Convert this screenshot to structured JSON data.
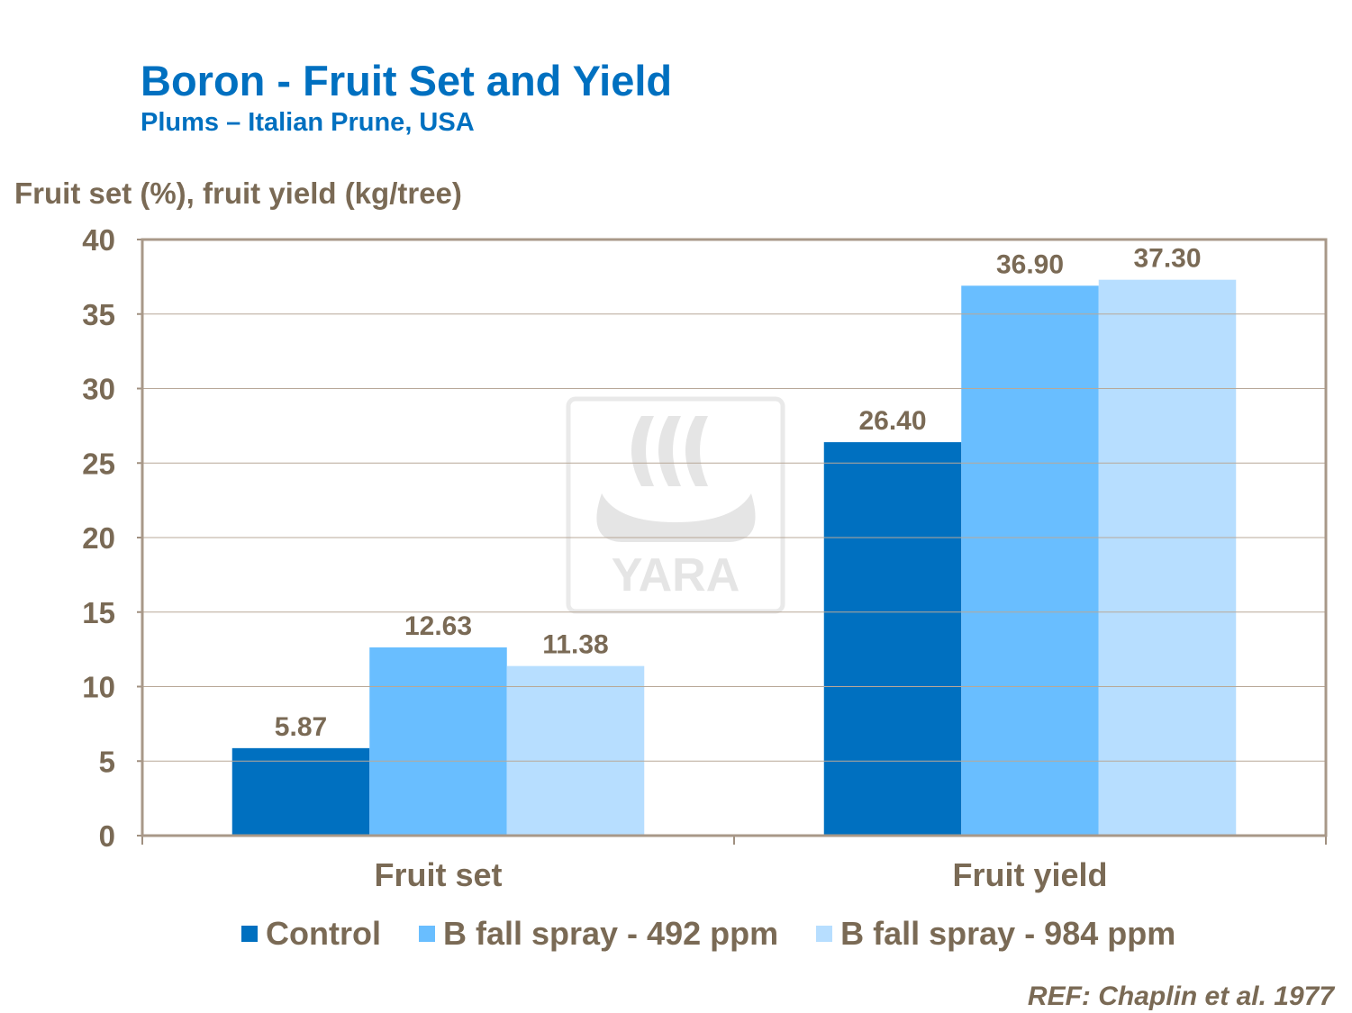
{
  "title": "Boron - Fruit Set and Yield",
  "subtitle": "Plums – Italian Prune, USA",
  "reference": "REF: Chaplin et al. 1977",
  "logo_text": "YARA",
  "chart_data": {
    "type": "bar",
    "title": "Boron - Fruit Set and Yield",
    "subtitle": "Plums – Italian Prune, USA",
    "ylabel": "Fruit set (%), fruit yield (kg/tree)",
    "xlabel": "",
    "ylim": [
      0,
      40
    ],
    "yticks": [
      0,
      5,
      10,
      15,
      20,
      25,
      30,
      35,
      40
    ],
    "grid": true,
    "legend": "bottom",
    "categories": [
      "Fruit set",
      "Fruit yield"
    ],
    "series": [
      {
        "name": "Control",
        "color": "#0070C0",
        "values": [
          5.87,
          26.4
        ],
        "labels": [
          "5.87",
          "26.40"
        ]
      },
      {
        "name": "B fall spray - 492 ppm",
        "color": "#69BEFF",
        "values": [
          12.63,
          36.9
        ],
        "labels": [
          "12.63",
          "36.90"
        ]
      },
      {
        "name": "B fall spray - 984 ppm",
        "color": "#B7DEFF",
        "values": [
          11.38,
          37.3
        ],
        "labels": [
          "11.38",
          "37.30"
        ]
      }
    ]
  }
}
